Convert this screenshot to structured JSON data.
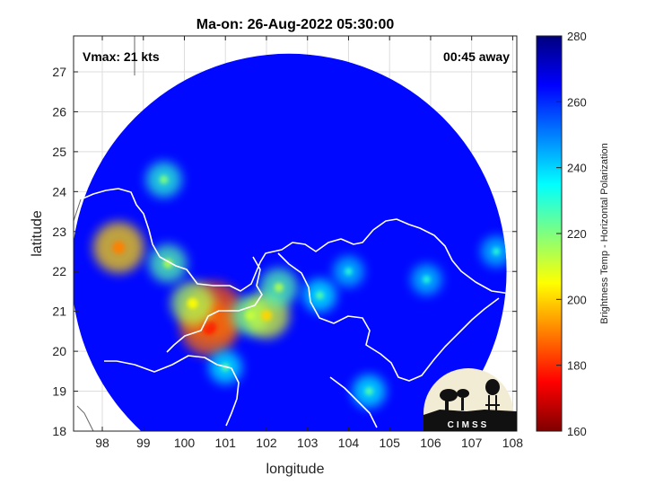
{
  "chart_data": {
    "type": "heatmap",
    "title": "Ma-on: 26-Aug-2022 05:30:00",
    "xlabel": "longitude",
    "ylabel": "latitude",
    "xlim": [
      97.3,
      108.1
    ],
    "ylim": [
      18.0,
      27.9
    ],
    "xticks": [
      98,
      99,
      100,
      101,
      102,
      103,
      104,
      105,
      106,
      107,
      108
    ],
    "yticks": [
      18,
      19,
      20,
      21,
      22,
      23,
      24,
      25,
      26,
      27
    ],
    "grid": true,
    "colorbar": {
      "label": "Brightness Temp - Horizontal Polarization",
      "range": [
        160,
        280
      ],
      "ticks": [
        160,
        180,
        200,
        220,
        240,
        260,
        280
      ],
      "colormap": "jet"
    },
    "annotations": {
      "vmax": "Vmax: 21 kts",
      "time_offset": "00:45 away"
    },
    "swath": {
      "center": [
        102.55,
        22.0
      ],
      "radius_deg": 5.3
    },
    "background_value": 264,
    "features": [
      {
        "lon": 100.7,
        "lat": 21.0,
        "value": 185
      },
      {
        "lon": 100.6,
        "lat": 20.6,
        "value": 188
      },
      {
        "lon": 100.2,
        "lat": 21.2,
        "value": 215
      },
      {
        "lon": 101.6,
        "lat": 20.9,
        "value": 225
      },
      {
        "lon": 102.0,
        "lat": 20.9,
        "value": 210
      },
      {
        "lon": 102.3,
        "lat": 21.6,
        "value": 225
      },
      {
        "lon": 103.3,
        "lat": 21.4,
        "value": 235
      },
      {
        "lon": 104.0,
        "lat": 22.0,
        "value": 240
      },
      {
        "lon": 98.4,
        "lat": 22.6,
        "value": 200
      },
      {
        "lon": 99.5,
        "lat": 24.3,
        "value": 230
      },
      {
        "lon": 99.6,
        "lat": 22.2,
        "value": 225
      },
      {
        "lon": 101.0,
        "lat": 19.6,
        "value": 235
      },
      {
        "lon": 104.5,
        "lat": 19.0,
        "value": 235
      },
      {
        "lon": 107.6,
        "lat": 22.5,
        "value": 240
      },
      {
        "lon": 105.9,
        "lat": 21.8,
        "value": 240
      }
    ]
  },
  "logo": {
    "text": "CIMSS"
  }
}
